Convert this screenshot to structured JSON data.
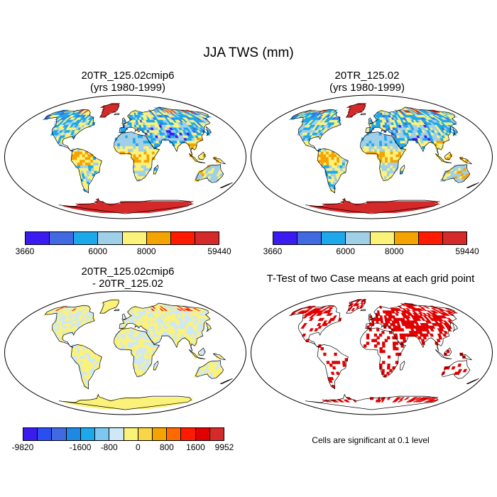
{
  "title": "JJA TWS (mm)",
  "panels": [
    {
      "title_line1": "20TR_125.02cmip6",
      "title_line2": "(yrs 1980-1999)",
      "kind": "field"
    },
    {
      "title_line1": "20TR_125.02",
      "title_line2": "(yrs 1980-1999)",
      "kind": "field"
    },
    {
      "title_line1": "20TR_125.02cmip6",
      "title_line2": "- 20TR_125.02",
      "kind": "diff"
    },
    {
      "title_line1": "T-Test of two Case means at each grid point",
      "title_line2": "",
      "kind": "ttest"
    }
  ],
  "colorbar_field": {
    "colors": [
      "#3b1cf0",
      "#4169e1",
      "#1ea8ec",
      "#a0cfe8",
      "#fbf27a",
      "#f5a300",
      "#ff1a00",
      "#d42a2a"
    ],
    "labels": [
      {
        "text": "3660",
        "pos": 0
      },
      {
        "text": "6000",
        "pos": 3
      },
      {
        "text": "8000",
        "pos": 5
      },
      {
        "text": "59440",
        "pos": 8
      }
    ]
  },
  "colorbar_diff": {
    "colors": [
      "#3b1cf0",
      "#2a4ff0",
      "#4169e1",
      "#1e88e5",
      "#1ea8ec",
      "#7ec8f0",
      "#cfe8f5",
      "#fbf27a",
      "#f9d548",
      "#f5a300",
      "#ff6a00",
      "#ff1a00",
      "#e00000",
      "#d42a2a"
    ],
    "labels": [
      {
        "text": "-9820",
        "pos": 0
      },
      {
        "text": "-1600",
        "pos": 4
      },
      {
        "text": "-800",
        "pos": 6
      },
      {
        "text": "0",
        "pos": 8
      },
      {
        "text": "800",
        "pos": 10
      },
      {
        "text": "1600",
        "pos": 12
      },
      {
        "text": "9952",
        "pos": 14
      }
    ]
  },
  "ttest_note": "Cells are significant at 0.1 level",
  "ttest_color": "#e00000"
}
